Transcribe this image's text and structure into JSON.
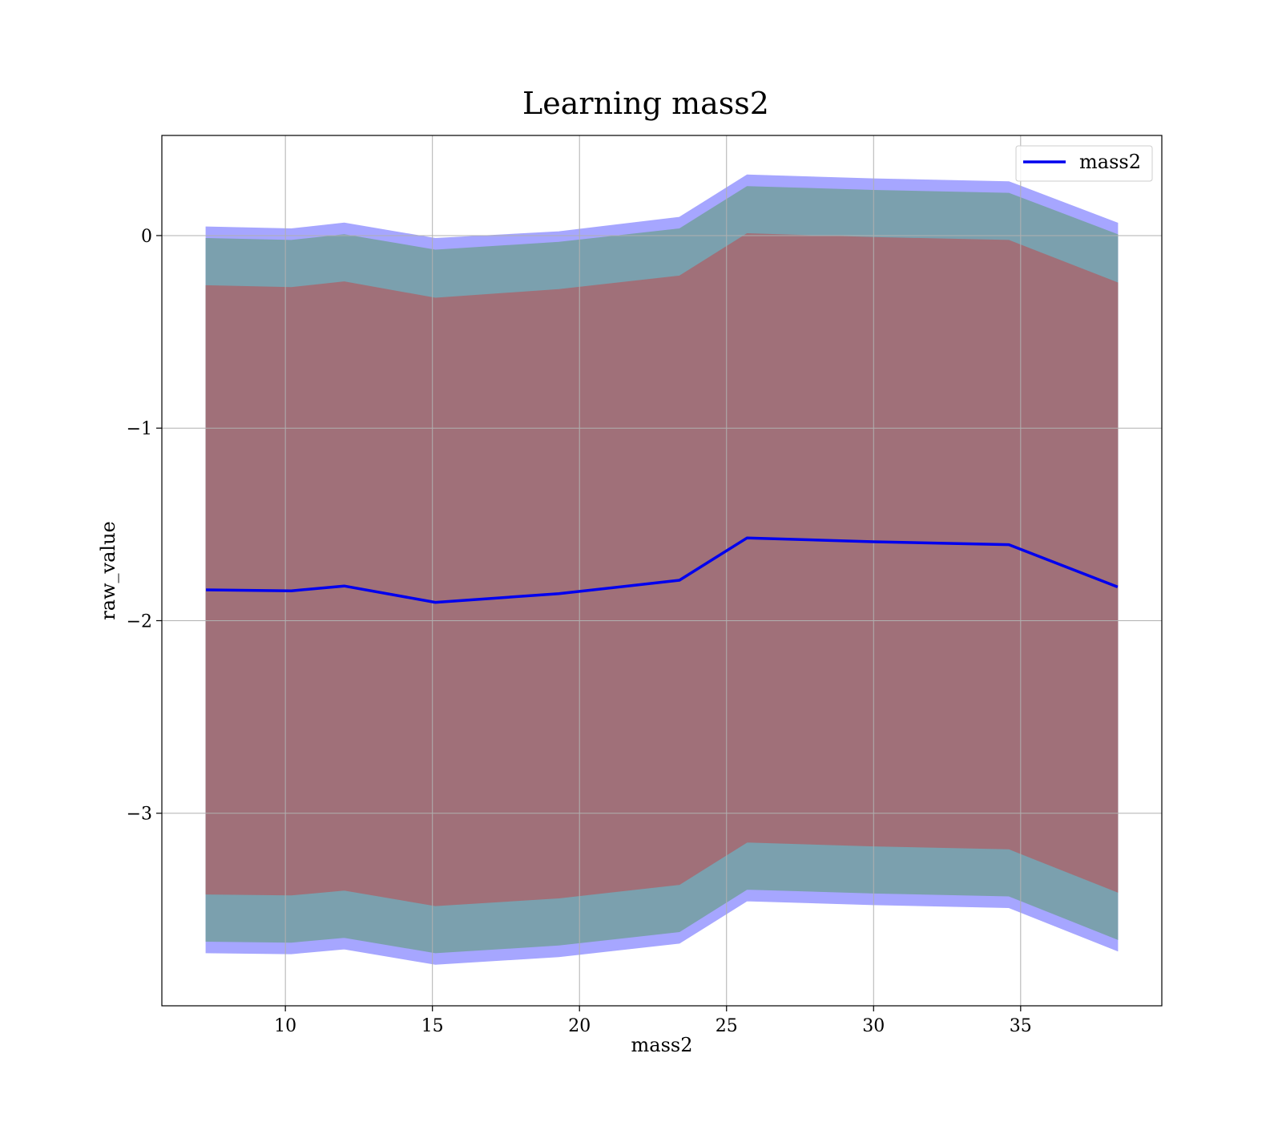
{
  "chart_data": {
    "type": "line",
    "title": "Learning mass2",
    "xlabel": "mass2",
    "ylabel": "raw_value",
    "xlim": [
      5.8,
      39.8
    ],
    "ylim": [
      -4.0,
      0.52
    ],
    "xticks": [
      10,
      15,
      20,
      25,
      30,
      35
    ],
    "xtick_labels": [
      "10",
      "15",
      "20",
      "25",
      "30",
      "35"
    ],
    "yticks": [
      0,
      -1,
      -2,
      -3
    ],
    "ytick_labels": [
      "0",
      "−1",
      "−2",
      "−3"
    ],
    "grid": true,
    "legend": {
      "position": "top-right",
      "entries": [
        "mass2"
      ]
    },
    "x": [
      7.3,
      10.2,
      12.0,
      15.1,
      19.3,
      23.4,
      25.7,
      30.0,
      34.6,
      38.3
    ],
    "series": [
      {
        "name": "mass2",
        "color": "#0000ee",
        "values": [
          -1.84,
          -1.845,
          -1.82,
          -1.905,
          -1.86,
          -1.79,
          -1.57,
          -1.59,
          -1.605,
          -1.825
        ]
      }
    ],
    "bands": [
      {
        "color": "#a6a6ff",
        "upper": [
          0.045,
          0.035,
          0.065,
          -0.015,
          0.02,
          0.095,
          0.315,
          0.295,
          0.28,
          0.065
        ],
        "lower": [
          -3.725,
          -3.73,
          -3.705,
          -3.785,
          -3.745,
          -3.675,
          -3.455,
          -3.475,
          -3.49,
          -3.715
        ]
      },
      {
        "color": "#7ba0ae",
        "upper": [
          -0.015,
          -0.025,
          0.005,
          -0.075,
          -0.035,
          0.035,
          0.255,
          0.235,
          0.22,
          0.005
        ],
        "lower": [
          -3.665,
          -3.67,
          -3.645,
          -3.725,
          -3.685,
          -3.615,
          -3.395,
          -3.415,
          -3.43,
          -3.655
        ]
      },
      {
        "color": "#a07079",
        "upper": [
          -0.26,
          -0.27,
          -0.24,
          -0.325,
          -0.28,
          -0.21,
          0.01,
          -0.01,
          -0.025,
          -0.245
        ],
        "lower": [
          -3.42,
          -3.425,
          -3.4,
          -3.48,
          -3.44,
          -3.37,
          -3.15,
          -3.17,
          -3.185,
          -3.41
        ]
      }
    ]
  }
}
